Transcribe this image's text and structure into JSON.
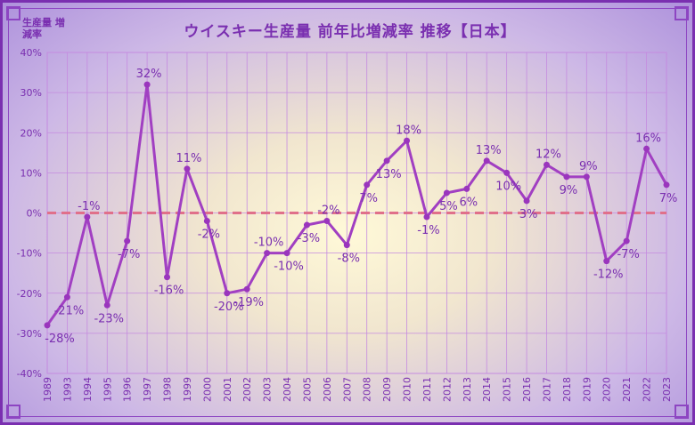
{
  "chart_data": {
    "type": "line",
    "title": "ウイスキー生産量 前年比増減率 推移【日本】",
    "ylabel": "生産量 増減率",
    "xlabel": "",
    "ylim": [
      -40,
      40
    ],
    "y_ticks": [
      "40%",
      "30%",
      "20%",
      "10%",
      "0%",
      "-10%",
      "-20%",
      "-30%",
      "-40%"
    ],
    "y_tick_values": [
      40,
      30,
      20,
      10,
      0,
      -10,
      -20,
      -30,
      -40
    ],
    "categories": [
      "1989",
      "1993",
      "1994",
      "1995",
      "1996",
      "1997",
      "1998",
      "1999",
      "2000",
      "2001",
      "2002",
      "2003",
      "2004",
      "2005",
      "2006",
      "2007",
      "2008",
      "2009",
      "2010",
      "2011",
      "2012",
      "2013",
      "2014",
      "2015",
      "2016",
      "2017",
      "2018",
      "2019",
      "2020",
      "2021",
      "2022",
      "2023"
    ],
    "values": [
      -28,
      -21,
      -1,
      -23,
      -7,
      32,
      -16,
      11,
      -2,
      -20,
      -19,
      -10,
      -10,
      -3,
      -2,
      -8,
      7,
      13,
      18,
      -1,
      5,
      6,
      13,
      10,
      3,
      12,
      9,
      9,
      -12,
      -7,
      16,
      7
    ],
    "labels": [
      "-28%",
      "-21%",
      "-1%",
      "-23%",
      "-7%",
      "32%",
      "-16%",
      "11%",
      "-2%",
      "-20%",
      "-19%",
      "-10%",
      "-10%",
      "-3%",
      "-2%",
      "-8%",
      "7%",
      "13%",
      "18%",
      "-1%",
      "5%",
      "6%",
      "13%",
      "10%",
      "3%",
      "12%",
      "9%",
      "9%",
      "-12%",
      "-7%",
      "16%",
      "7%"
    ],
    "grid": true,
    "zero_line": "dashed",
    "colors": {
      "line": "#a13fc2",
      "marker": "#9a35bd",
      "zero": "#e0708a",
      "grid": "#c58be0",
      "text": "#7a2fb0"
    }
  }
}
